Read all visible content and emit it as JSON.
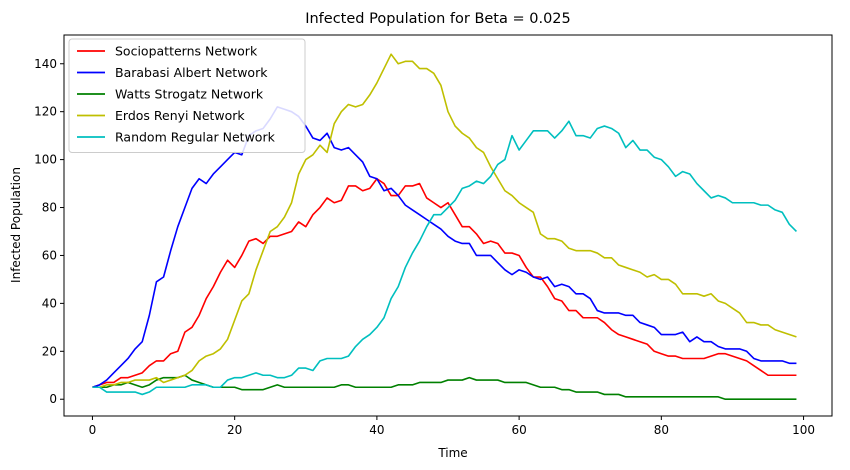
{
  "chart_data": {
    "type": "line",
    "title": "Infected Population for Beta = 0.025",
    "xlabel": "Time",
    "ylabel": "Infected Population",
    "xlim": [
      -4,
      104
    ],
    "ylim": [
      -7,
      152
    ],
    "xticks": [
      0,
      20,
      40,
      60,
      80,
      100
    ],
    "yticks": [
      0,
      20,
      40,
      60,
      80,
      100,
      120,
      140
    ],
    "grid": false,
    "legend_position": "top-left",
    "x_start": 0,
    "x_step": 1,
    "series": [
      {
        "name": "Sociopatterns Network",
        "color": "#ff0000",
        "values": [
          5,
          6,
          7,
          7,
          9,
          9,
          10,
          11,
          14,
          16,
          16,
          19,
          20,
          28,
          30,
          35,
          42,
          47,
          53,
          58,
          55,
          60,
          66,
          67,
          65,
          68,
          68,
          69,
          70,
          74,
          72,
          77,
          80,
          84,
          82,
          83,
          89,
          89,
          87,
          88,
          92,
          90,
          85,
          85,
          89,
          89,
          90,
          84,
          82,
          80,
          82,
          77,
          72,
          72,
          69,
          65,
          66,
          65,
          61,
          61,
          60,
          55,
          51,
          51,
          47,
          42,
          41,
          37,
          37,
          34,
          34,
          34,
          32,
          29,
          27,
          26,
          25,
          24,
          23,
          20,
          19,
          18,
          18,
          17,
          17,
          17,
          17,
          18,
          19,
          19,
          18,
          17,
          16,
          14,
          12,
          10,
          10,
          10,
          10,
          10
        ]
      },
      {
        "name": "Barabasi Albert Network",
        "color": "#0000ff",
        "values": [
          5,
          6,
          8,
          11,
          14,
          17,
          21,
          24,
          35,
          49,
          51,
          62,
          72,
          80,
          88,
          92,
          90,
          94,
          97,
          100,
          103,
          102,
          110,
          112,
          113,
          117,
          122,
          121,
          120,
          118,
          114,
          109,
          108,
          111,
          105,
          104,
          105,
          102,
          99,
          93,
          92,
          87,
          88,
          85,
          81,
          79,
          77,
          75,
          73,
          71,
          68,
          66,
          65,
          65,
          60,
          60,
          60,
          57,
          54,
          52,
          54,
          53,
          51,
          50,
          51,
          47,
          48,
          47,
          44,
          44,
          42,
          37,
          36,
          36,
          36,
          35,
          35,
          32,
          31,
          30,
          27,
          27,
          27,
          28,
          24,
          26,
          24,
          24,
          22,
          21,
          21,
          21,
          20,
          17,
          16,
          16,
          16,
          16,
          15,
          15
        ]
      },
      {
        "name": "Watts Strogatz Network",
        "color": "#008000",
        "values": [
          5,
          5,
          5,
          6,
          6,
          7,
          6,
          5,
          6,
          8,
          9,
          9,
          9,
          10,
          8,
          7,
          6,
          5,
          5,
          5,
          5,
          4,
          4,
          4,
          4,
          5,
          6,
          5,
          5,
          5,
          5,
          5,
          5,
          5,
          5,
          6,
          6,
          5,
          5,
          5,
          5,
          5,
          5,
          6,
          6,
          6,
          7,
          7,
          7,
          7,
          8,
          8,
          8,
          9,
          8,
          8,
          8,
          8,
          7,
          7,
          7,
          7,
          6,
          5,
          5,
          5,
          4,
          4,
          3,
          3,
          3,
          3,
          2,
          2,
          2,
          1,
          1,
          1,
          1,
          1,
          1,
          1,
          1,
          1,
          1,
          1,
          1,
          1,
          1,
          0,
          0,
          0,
          0,
          0,
          0,
          0,
          0,
          0,
          0,
          0
        ]
      },
      {
        "name": "Erdos Renyi Network",
        "color": "#bfbf00",
        "values": [
          5,
          5,
          6,
          6,
          7,
          7,
          8,
          8,
          8,
          9,
          7,
          8,
          9,
          10,
          12,
          16,
          18,
          19,
          21,
          25,
          33,
          41,
          44,
          54,
          62,
          70,
          72,
          76,
          82,
          94,
          100,
          102,
          106,
          103,
          115,
          120,
          123,
          122,
          123,
          127,
          132,
          138,
          144,
          140,
          141,
          141,
          138,
          138,
          136,
          131,
          120,
          114,
          111,
          109,
          105,
          103,
          97,
          92,
          87,
          85,
          82,
          80,
          78,
          69,
          67,
          67,
          66,
          63,
          62,
          62,
          62,
          61,
          59,
          59,
          56,
          55,
          54,
          53,
          51,
          52,
          50,
          50,
          48,
          44,
          44,
          44,
          43,
          44,
          41,
          40,
          38,
          36,
          32,
          32,
          31,
          31,
          29,
          28,
          27,
          26
        ]
      },
      {
        "name": "Random Regular Network",
        "color": "#00bfbf",
        "values": [
          5,
          5,
          3,
          3,
          3,
          3,
          3,
          2,
          3,
          5,
          5,
          5,
          5,
          5,
          6,
          6,
          6,
          5,
          5,
          8,
          9,
          9,
          10,
          11,
          10,
          10,
          9,
          9,
          10,
          13,
          13,
          12,
          16,
          17,
          17,
          17,
          18,
          22,
          25,
          27,
          30,
          34,
          42,
          47,
          55,
          61,
          66,
          72,
          77,
          77,
          80,
          83,
          88,
          89,
          91,
          90,
          93,
          98,
          100,
          110,
          104,
          108,
          112,
          112,
          112,
          109,
          112,
          116,
          110,
          110,
          109,
          113,
          114,
          113,
          111,
          105,
          108,
          104,
          104,
          101,
          100,
          97,
          93,
          95,
          94,
          90,
          87,
          84,
          85,
          84,
          82,
          82,
          82,
          82,
          81,
          81,
          79,
          78,
          73,
          70
        ]
      }
    ]
  }
}
